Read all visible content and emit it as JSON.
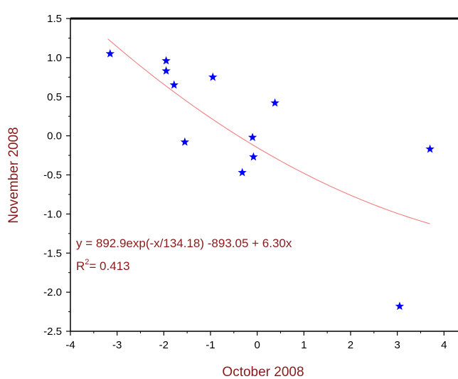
{
  "chart_data": {
    "type": "scatter",
    "xlabel": "October 2008",
    "ylabel": "November 2008",
    "xlim": [
      -4,
      4.3
    ],
    "ylim": [
      -2.5,
      1.5
    ],
    "x_ticks": [
      "-4",
      "-3",
      "-2",
      "-1",
      "0",
      "1",
      "2",
      "3",
      "4"
    ],
    "y_ticks": [
      "1.5",
      "1.0",
      "0.5",
      "0.0",
      "-0.5",
      "-1.0",
      "-1.5",
      "-2.0",
      "-2.5"
    ],
    "grid": false,
    "series": [
      {
        "marker": "star",
        "color": "#0000ff",
        "points": [
          {
            "x": -3.15,
            "y": 1.05
          },
          {
            "x": -1.95,
            "y": 0.96
          },
          {
            "x": -1.95,
            "y": 0.83
          },
          {
            "x": -1.78,
            "y": 0.65
          },
          {
            "x": -0.95,
            "y": 0.75
          },
          {
            "x": -1.55,
            "y": -0.08
          },
          {
            "x": -0.1,
            "y": -0.02
          },
          {
            "x": 0.38,
            "y": 0.42
          },
          {
            "x": -0.08,
            "y": -0.27
          },
          {
            "x": -0.32,
            "y": -0.47
          },
          {
            "x": 3.05,
            "y": -2.18
          },
          {
            "x": 3.7,
            "y": -0.17
          }
        ]
      }
    ],
    "fit": {
      "color": "#f08080",
      "x_range": [
        -3.2,
        3.7
      ],
      "params": {
        "A": 892.9,
        "t": 134.18,
        "y0": -893.05,
        "b": 6.3
      }
    },
    "annotations": {
      "equation": "y = 892.9exp(-x/134.18) -893.05 + 6.30x",
      "r2_prefix": "R",
      "r2_sup": "2",
      "r2_value": "= 0.413",
      "color": "#8b1a1a"
    },
    "label_color": "#8b1a1a"
  }
}
